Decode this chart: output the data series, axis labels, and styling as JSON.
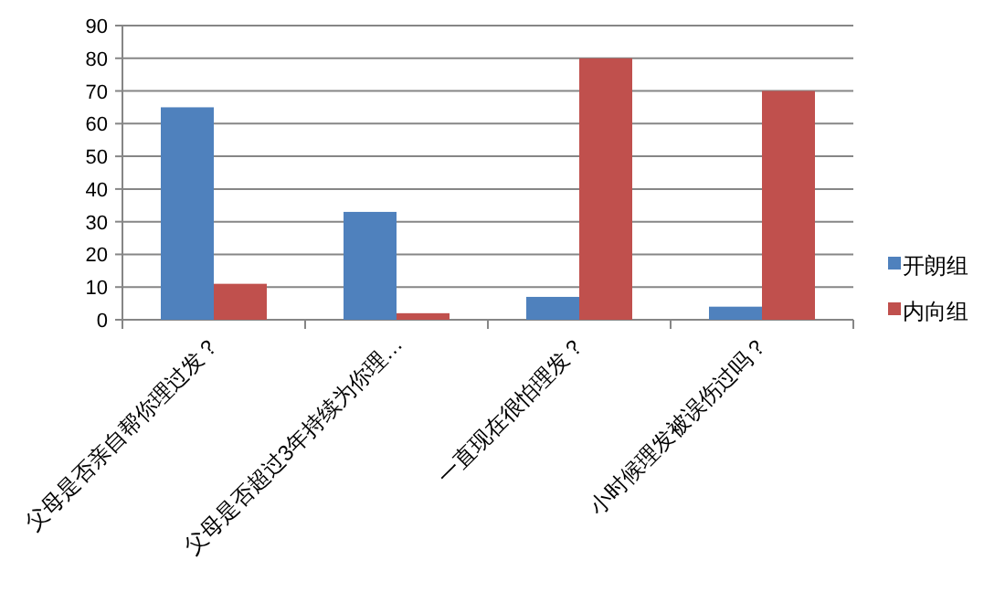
{
  "chart_data": {
    "type": "bar",
    "categories": [
      "父母是否亲自帮你理过发？",
      "父母是否超过3年持续为你理…",
      "一直现在很怕理发？",
      "小时候理发被误伤过吗？"
    ],
    "series": [
      {
        "name": "开朗组",
        "color": "#4f81bd",
        "values": [
          65,
          33,
          7,
          4
        ]
      },
      {
        "name": "内向组",
        "color": "#c0504d",
        "values": [
          11,
          2,
          80,
          70
        ]
      }
    ],
    "ylim": [
      0,
      90
    ],
    "yticks": [
      0,
      10,
      20,
      30,
      40,
      50,
      60,
      70,
      80,
      90
    ],
    "grid": "y",
    "legend": "right"
  }
}
